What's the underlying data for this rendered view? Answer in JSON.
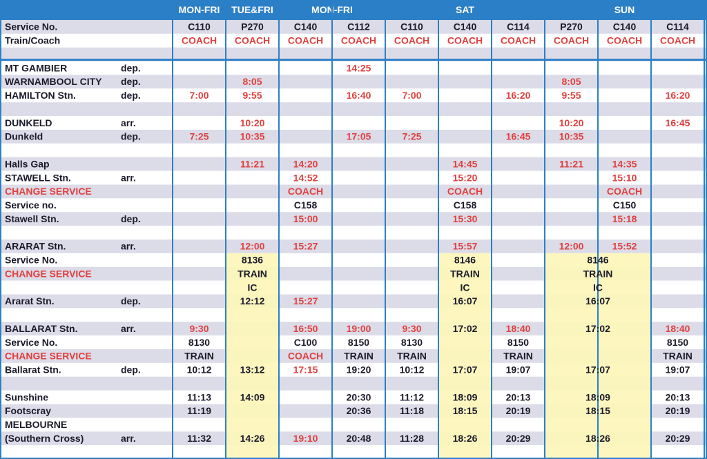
{
  "header": {
    "groups": [
      "MON-FRI",
      "TUE&FRI",
      "MON-FRI",
      "SAT",
      "SUN"
    ]
  },
  "rows": [
    {
      "label": "Service No.",
      "cells": [
        "C110",
        "P270",
        "C140",
        "C112",
        "C110",
        "C140",
        "C114",
        "P270",
        "C140",
        "C114"
      ]
    },
    {
      "label": "Train/Coach",
      "cells": [
        "COACH",
        "COACH",
        "COACH",
        "COACH",
        "COACH",
        "COACH",
        "COACH",
        "COACH",
        "COACH",
        "COACH"
      ]
    },
    {},
    {
      "label": "MT GAMBIER",
      "stop": "dep.",
      "cells": [
        null,
        null,
        null,
        "14:25",
        null,
        null,
        null,
        null,
        null,
        null
      ]
    },
    {
      "label": "WARNAMBOOL CITY",
      "stop": "dep.",
      "cells": [
        null,
        "8:05",
        null,
        null,
        null,
        null,
        null,
        "8:05",
        null,
        null
      ]
    },
    {
      "label": "HAMILTON Stn.",
      "stop": "dep.",
      "cells": [
        "7:00",
        "9:55",
        null,
        "16:40",
        "7:00",
        null,
        "16:20",
        "9:55",
        null,
        "16:20"
      ]
    },
    {},
    {
      "label": "DUNKELD",
      "stop": "arr.",
      "cells": [
        null,
        "10:20",
        null,
        null,
        null,
        null,
        null,
        "10:20",
        null,
        "16:45"
      ]
    },
    {
      "label": "Dunkeld",
      "stop": "dep.",
      "cells": [
        "7:25",
        "10:35",
        null,
        "17:05",
        "7:25",
        null,
        "16:45",
        "10:35",
        null,
        null
      ]
    },
    {},
    {
      "label": "Halls Gap",
      "cells": [
        null,
        "11:21",
        "14:20",
        null,
        null,
        "14:45",
        null,
        "11:21",
        "14:35",
        null
      ]
    },
    {
      "label": "STAWELL Stn.",
      "stop": "arr.",
      "cells": [
        null,
        null,
        "14:52",
        null,
        null,
        "15:20",
        null,
        null,
        "15:10",
        null
      ]
    },
    {
      "label": "CHANGE SERVICE",
      "cells": [
        null,
        null,
        "COACH",
        null,
        null,
        "COACH",
        null,
        null,
        "COACH",
        null
      ]
    },
    {
      "label": "Service no.",
      "cells": [
        null,
        null,
        "C158",
        null,
        null,
        "C158",
        null,
        null,
        "C150",
        null
      ]
    },
    {
      "label": "Stawell Stn.",
      "stop": "dep.",
      "cells": [
        null,
        null,
        "15:00",
        null,
        null,
        "15:30",
        null,
        null,
        "15:18",
        null
      ]
    },
    {},
    {
      "label": "ARARAT Stn.",
      "stop": "arr.",
      "cells": [
        null,
        "12:00",
        "15:27",
        null,
        null,
        "15:57",
        null,
        "12:00",
        "15:52",
        null
      ]
    },
    {
      "label": "Service No.",
      "cells": [
        null,
        "8136",
        null,
        null,
        null,
        "8146",
        null,
        "8146",
        null,
        null
      ]
    },
    {
      "label": "CHANGE SERVICE",
      "cells": [
        null,
        "TRAIN",
        null,
        null,
        null,
        "TRAIN",
        null,
        "TRAIN",
        null,
        null
      ]
    },
    {
      "cells": [
        null,
        "IC",
        null,
        null,
        null,
        "IC",
        null,
        "IC",
        null,
        null
      ]
    },
    {
      "label": "Ararat Stn.",
      "stop": "dep.",
      "cells": [
        null,
        "12:12",
        "15:27",
        null,
        null,
        "16:07",
        null,
        "16:07",
        null,
        null
      ]
    },
    {},
    {
      "label": "BALLARAT Stn.",
      "stop": "arr.",
      "cells": [
        "9:30",
        null,
        "16:50",
        "19:00",
        "9:30",
        "17:02",
        "18:40",
        "17:02",
        null,
        "18:40"
      ]
    },
    {
      "label": "Service No.",
      "cells": [
        "8130",
        null,
        "C100",
        "8150",
        "8130",
        null,
        "8150",
        null,
        null,
        "8150"
      ]
    },
    {
      "label": "CHANGE SERVICE",
      "cells": [
        "TRAIN",
        null,
        "COACH",
        "TRAIN",
        "TRAIN",
        null,
        "TRAIN",
        null,
        null,
        "TRAIN"
      ]
    },
    {
      "label": "Ballarat Stn.",
      "stop": "dep.",
      "cells": [
        "10:12",
        "13:12",
        "17:15",
        "19:20",
        "10:12",
        "17:07",
        "19:07",
        "17:07",
        null,
        "19:07"
      ]
    },
    {},
    {
      "label": "Sunshine",
      "cells": [
        "11:13",
        "14:09",
        null,
        "20:30",
        "11:12",
        "18:09",
        "20:13",
        "18:09",
        null,
        "20:13"
      ]
    },
    {
      "label": "Footscray",
      "cells": [
        "11:19",
        null,
        null,
        "20:36",
        "11:18",
        "18:15",
        "20:19",
        "18:15",
        null,
        "20:19"
      ]
    },
    {
      "label": "MELBOURNE"
    },
    {
      "label": "(Southern Cross)",
      "stop": "arr.",
      "cells": [
        "11:32",
        "14:26",
        "19:10",
        "20:48",
        "11:28",
        "18:26",
        "20:29",
        "18:26",
        null,
        "20:29"
      ]
    },
    {}
  ]
}
